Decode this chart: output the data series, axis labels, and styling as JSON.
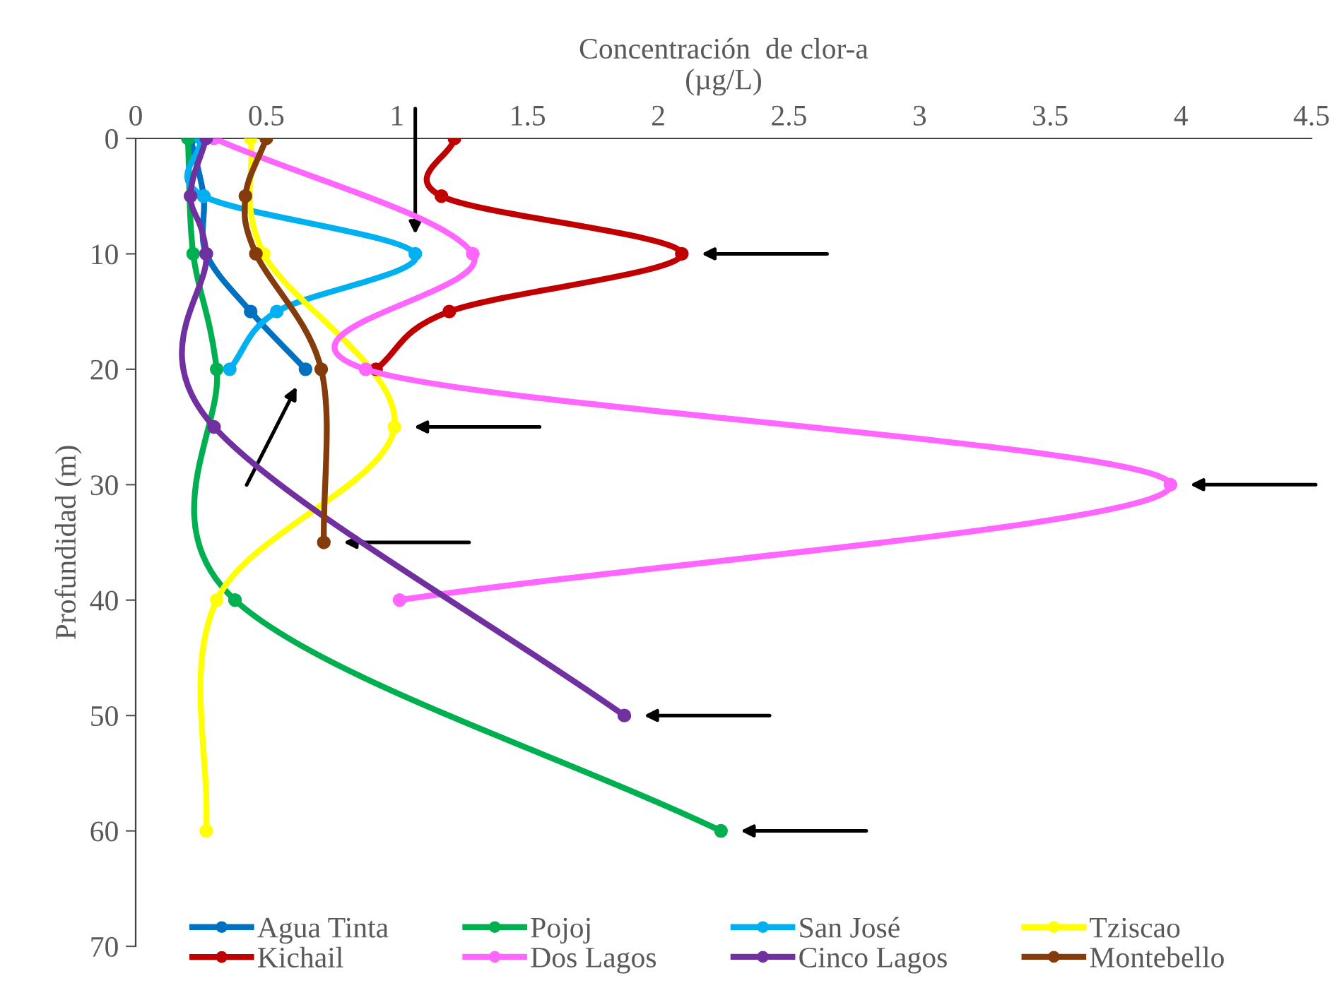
{
  "chart_data": {
    "type": "line",
    "xlabel": "Concentración  de clor-a\n(µg/L)",
    "ylabel": "Profundidad (m)",
    "xlim": [
      0,
      4.5
    ],
    "xticks": [
      0,
      0.5,
      1,
      1.5,
      2,
      2.5,
      3,
      3.5,
      4,
      4.5
    ],
    "ylim": [
      70,
      0
    ],
    "yticks": [
      0,
      10,
      20,
      30,
      40,
      50,
      60,
      70
    ],
    "grid": false,
    "legend": "bottom",
    "marker": "circle",
    "line_style": "solid",
    "series": [
      {
        "name": "Agua Tinta",
        "color": "#0070c0",
        "x": [
          0.21,
          0.26,
          0.27,
          0.44,
          0.65
        ],
        "values": [
          0,
          5,
          10,
          15,
          20
        ]
      },
      {
        "name": "Pojoj",
        "color": "#00b050",
        "x": [
          0.2,
          0.22,
          0.31,
          0.38,
          2.24
        ],
        "values": [
          0,
          10,
          20,
          40,
          60
        ]
      },
      {
        "name": "San José",
        "color": "#00b0f0",
        "x": [
          0.25,
          0.26,
          1.07,
          0.54,
          0.36
        ],
        "values": [
          0,
          5,
          10,
          15,
          20
        ]
      },
      {
        "name": "Tziscao",
        "color": "#ffff00",
        "x": [
          0.44,
          0.49,
          0.99,
          0.31,
          0.27
        ],
        "values": [
          0,
          10,
          25,
          40,
          60
        ]
      },
      {
        "name": "Kichail",
        "color": "#c00000",
        "x": [
          1.22,
          1.17,
          2.09,
          1.2,
          0.92
        ],
        "values": [
          0,
          5,
          10,
          15,
          20
        ]
      },
      {
        "name": "Dos Lagos",
        "color": "#ff66ff",
        "x": [
          0.3,
          1.29,
          0.88,
          3.96,
          1.01
        ],
        "values": [
          0,
          10,
          20,
          30,
          40
        ]
      },
      {
        "name": "Cinco Lagos",
        "color": "#7030a0",
        "x": [
          0.27,
          0.21,
          0.27,
          0.3,
          1.87
        ],
        "values": [
          0,
          5,
          10,
          25,
          50
        ]
      },
      {
        "name": "Montebello",
        "color": "#843c0c",
        "x": [
          0.5,
          0.42,
          0.46,
          0.71,
          0.72
        ],
        "values": [
          0,
          5,
          10,
          20,
          35
        ]
      }
    ]
  }
}
